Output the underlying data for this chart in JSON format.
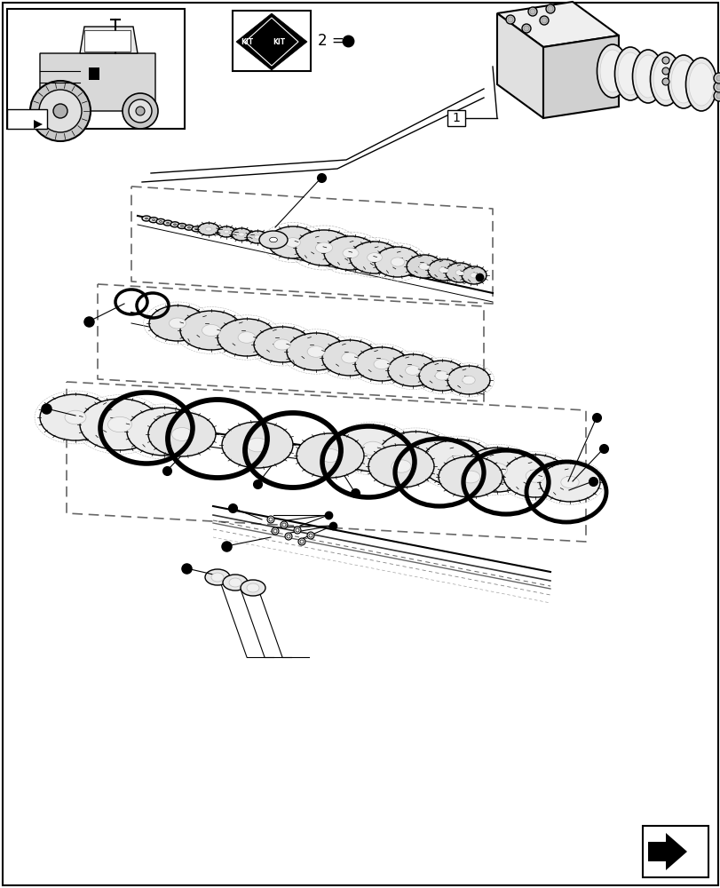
{
  "background_color": "#ffffff",
  "page_width": 8.12,
  "page_height": 10.0,
  "dpi": 100,
  "border_color": "#000000",
  "light_gray": "#bbbbbb",
  "dash_color": "#666666",
  "mid_gray": "#cccccc",
  "dark_gray": "#888888"
}
